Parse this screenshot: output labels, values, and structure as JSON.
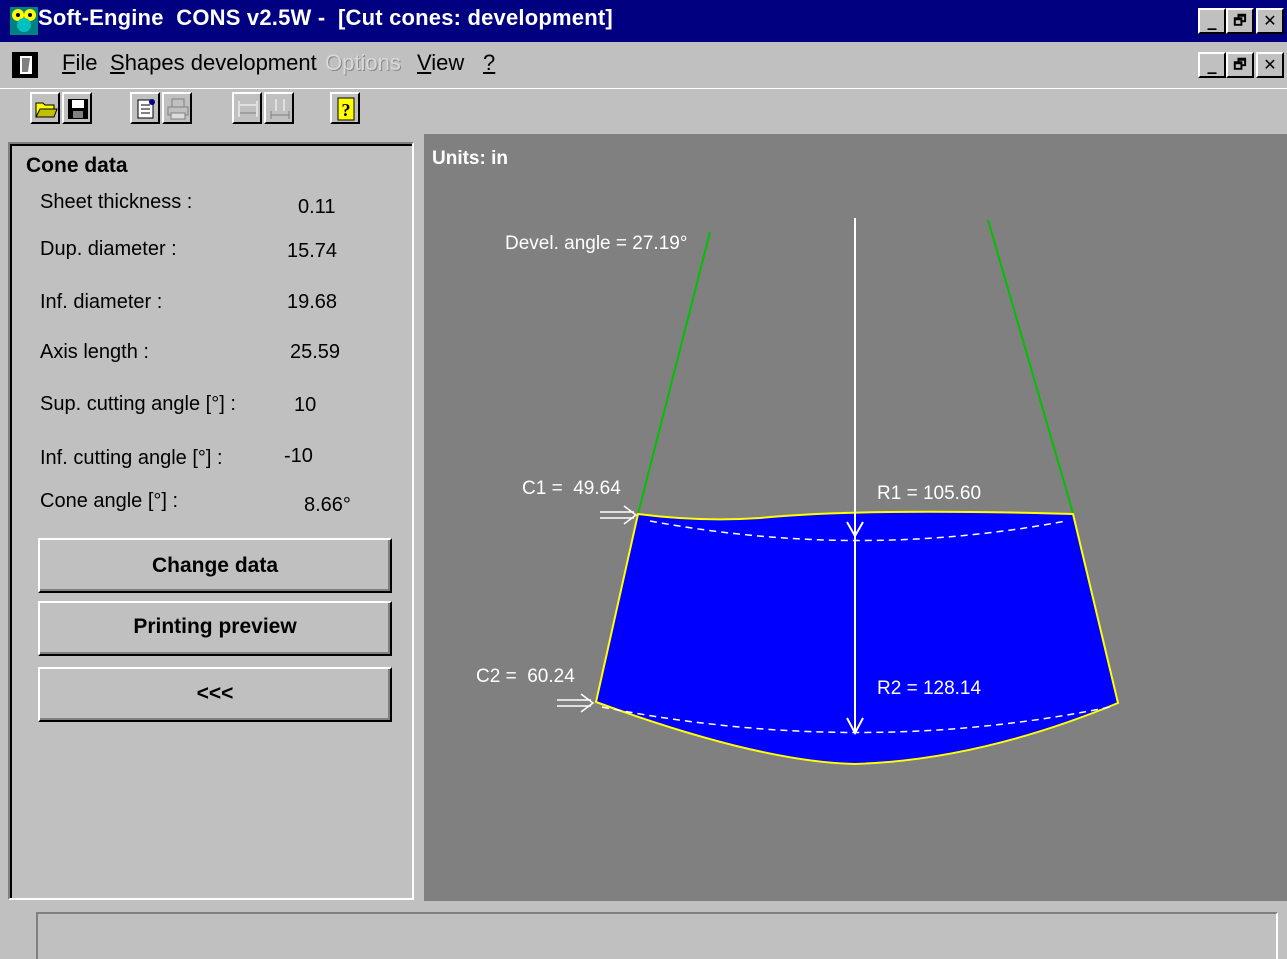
{
  "window": {
    "title": "Soft-Engine  CONS v2.5W -  [Cut cones: development]",
    "title_bar_color": "#000080",
    "controls": {
      "minimize": "_",
      "restore": "🗗",
      "close": "✕"
    }
  },
  "menu": {
    "items": [
      {
        "label": "File",
        "accel": "F",
        "rest": "ile",
        "enabled": true
      },
      {
        "label": "Shapes development",
        "accel": "S",
        "rest": "hapes development",
        "enabled": true
      },
      {
        "label": "Options",
        "accel": "",
        "rest": "Options",
        "enabled": false
      },
      {
        "label": "View",
        "accel": "V",
        "rest": "iew",
        "enabled": true
      },
      {
        "label": "?",
        "accel": "?",
        "rest": "",
        "enabled": true
      }
    ]
  },
  "toolbar": {
    "buttons": [
      {
        "name": "open-folder-icon",
        "enabled": true
      },
      {
        "name": "save-disk-icon",
        "enabled": true
      },
      {
        "name": "page-setup-icon",
        "enabled": true
      },
      {
        "name": "print-icon",
        "enabled": false
      },
      {
        "name": "horizontal-dimension-icon",
        "enabled": false
      },
      {
        "name": "vertical-dimension-icon",
        "enabled": false
      },
      {
        "name": "help-icon",
        "enabled": true
      }
    ]
  },
  "panel": {
    "title": "Cone data",
    "fields": [
      {
        "label": "Sheet thickness :",
        "value": "0.11"
      },
      {
        "label": "Dup. diameter :",
        "value": "15.74"
      },
      {
        "label": "Inf. diameter :",
        "value": "19.68"
      },
      {
        "label": "Axis length :",
        "value": "25.59"
      },
      {
        "label": "Sup. cutting angle [°] :",
        "value": "10"
      },
      {
        "label": "Inf. cutting angle [°] :",
        "value": "-10"
      },
      {
        "label": "Cone angle [°] :",
        "value": "8.66°"
      }
    ],
    "buttons": {
      "change_data": "Change data",
      "printing_preview": "Printing preview",
      "back": "<<<"
    }
  },
  "drawing": {
    "units": "Units: in",
    "devel_angle": "Devel. angle = 27.19°",
    "c1": "C1 =  49.64",
    "c2": "C2 =  60.24",
    "r1": "R1 = 105.60",
    "r2": "R2 = 128.14",
    "colors": {
      "background": "#808080",
      "fill": "#0000ff",
      "outline": "#ffff00",
      "radial_lines": "#00c000",
      "axis": "#ffffff"
    }
  },
  "status": {
    "text": ""
  }
}
